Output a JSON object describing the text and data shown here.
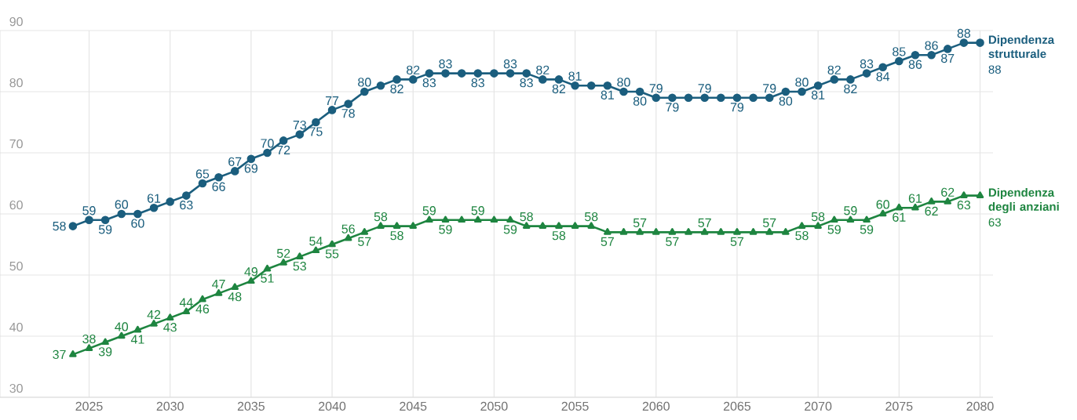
{
  "chart_data": {
    "type": "line",
    "x": [
      2024,
      2025,
      2026,
      2027,
      2028,
      2029,
      2030,
      2031,
      2032,
      2033,
      2034,
      2035,
      2036,
      2037,
      2038,
      2039,
      2040,
      2041,
      2042,
      2043,
      2044,
      2045,
      2046,
      2047,
      2048,
      2049,
      2050,
      2051,
      2052,
      2053,
      2054,
      2055,
      2056,
      2057,
      2058,
      2059,
      2060,
      2061,
      2062,
      2063,
      2064,
      2065,
      2066,
      2067,
      2068,
      2069,
      2070,
      2071,
      2072,
      2073,
      2074,
      2075,
      2076,
      2077,
      2078,
      2079,
      2080
    ],
    "xlim": [
      2019.5,
      2080.8
    ],
    "xticks": [
      2025,
      2030,
      2035,
      2040,
      2045,
      2050,
      2055,
      2060,
      2065,
      2070,
      2075,
      2080
    ],
    "ylim": [
      30,
      90
    ],
    "yticks": [
      30,
      40,
      50,
      60,
      70,
      80,
      90
    ],
    "grid": true,
    "legend": "right",
    "series": [
      {
        "name": "Dipendenza strutturale",
        "color": "#1b5e7e",
        "marker": "circle",
        "values": [
          58,
          59,
          59,
          60,
          60,
          61,
          62,
          63,
          65,
          66,
          67,
          69,
          70,
          72,
          73,
          75,
          77,
          78,
          80,
          81,
          82,
          82,
          83,
          83,
          83,
          83,
          83,
          83,
          83,
          82,
          82,
          81,
          81,
          81,
          80,
          80,
          79,
          79,
          79,
          79,
          79,
          79,
          79,
          79,
          80,
          80,
          81,
          82,
          82,
          83,
          84,
          85,
          86,
          86,
          87,
          88,
          88
        ],
        "value_labels": [
          "58",
          "59",
          "59",
          "60",
          "60",
          "61",
          null,
          "63",
          "65",
          "66",
          "67",
          "69",
          "70",
          "72",
          "73",
          "75",
          "77",
          "78",
          "80",
          null,
          "82",
          "82",
          "83",
          "83",
          null,
          "83",
          null,
          "83",
          "83",
          "82",
          "82",
          "81",
          null,
          "81",
          "80",
          "80",
          "79",
          "79",
          null,
          "79",
          null,
          "79",
          null,
          "79",
          "80",
          "80",
          "81",
          "82",
          "82",
          "83",
          "84",
          "85",
          "86",
          "86",
          "87",
          "88",
          "88"
        ]
      },
      {
        "name": "Dipendenza degli anziani",
        "color": "#1e8540",
        "marker": "triangle",
        "values": [
          37,
          38,
          39,
          40,
          41,
          42,
          43,
          44,
          46,
          47,
          48,
          49,
          51,
          52,
          53,
          54,
          55,
          56,
          57,
          58,
          58,
          58,
          59,
          59,
          59,
          59,
          59,
          59,
          58,
          58,
          58,
          58,
          58,
          57,
          57,
          57,
          57,
          57,
          57,
          57,
          57,
          57,
          57,
          57,
          57,
          58,
          58,
          59,
          59,
          59,
          60,
          61,
          61,
          62,
          62,
          63,
          63
        ],
        "value_labels": [
          "37",
          "38",
          "39",
          "40",
          "41",
          "42",
          "43",
          "44",
          "46",
          "47",
          "48",
          "49",
          "51",
          "52",
          "53",
          "54",
          "55",
          "56",
          "57",
          "58",
          "58",
          null,
          "59",
          "59",
          null,
          "59",
          null,
          "59",
          "58",
          null,
          "58",
          null,
          "58",
          "57",
          null,
          "57",
          null,
          "57",
          null,
          "57",
          null,
          "57",
          null,
          "57",
          null,
          "58",
          "58",
          "59",
          "59",
          "59",
          "60",
          "61",
          "61",
          "62",
          "62",
          "63",
          "63"
        ]
      }
    ]
  }
}
